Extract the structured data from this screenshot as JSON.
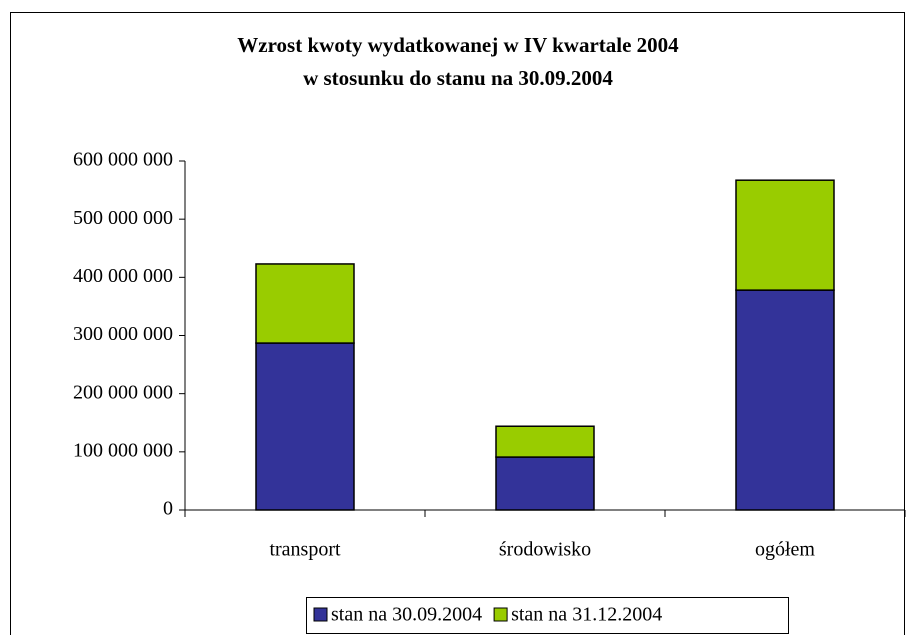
{
  "chart_data": {
    "type": "stacked-bar",
    "title": [
      "Wzrost kwoty wydatkowanej w IV kwartale 2004",
      "w stosunku do stanu na 30.09.2004"
    ],
    "categories": [
      "transport",
      "środowisko",
      "ogółem"
    ],
    "series": [
      {
        "name": "stan na 30.09.2004",
        "color": "#333399",
        "values": [
          287000000,
          91000000,
          378000000
        ]
      },
      {
        "name": "stan na 31.12.2004",
        "color": "#99cc00",
        "values": [
          136000000,
          53000000,
          189000000
        ]
      }
    ],
    "ylim": [
      0,
      600000000
    ],
    "yticks": [
      0,
      {
        "value": 100000000,
        "label": "100 000 000"
      },
      {
        "value": 200000000,
        "label": "200 000 000"
      },
      {
        "value": 300000000,
        "label": "300 000 000"
      },
      {
        "value": 400000000,
        "label": "400 000 000"
      },
      {
        "value": 500000000,
        "label": "500 000 000"
      },
      {
        "value": 600000000,
        "label": "600 000 000"
      }
    ],
    "grid": false,
    "legend": "bottom"
  }
}
